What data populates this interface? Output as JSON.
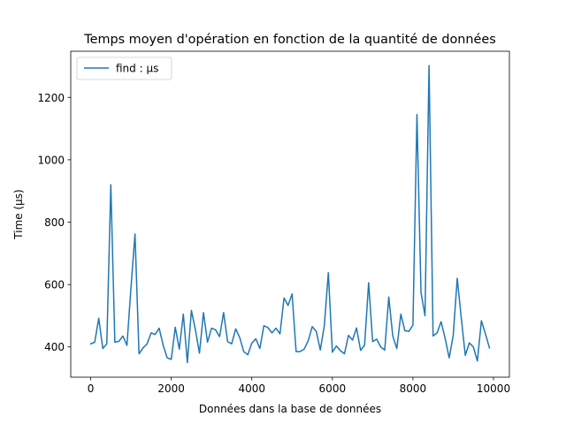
{
  "chart_data": {
    "type": "line",
    "title": "Temps moyen d'opération en fonction de la quantité de données",
    "xlabel": "Données dans la base de données",
    "ylabel": "Time (µs)",
    "xlim": [
      -495,
      10395
    ],
    "ylim": [
      303,
      1348
    ],
    "xticks": [
      0,
      2000,
      4000,
      6000,
      8000,
      10000
    ],
    "yticks": [
      400,
      600,
      800,
      1000,
      1200
    ],
    "grid": false,
    "legend": "top-left",
    "colors": {
      "series": "#1f77b4",
      "axes": "#000000",
      "background": "#ffffff"
    },
    "series": [
      {
        "name": "find : µs",
        "x": [
          0,
          100,
          200,
          300,
          400,
          500,
          600,
          700,
          800,
          900,
          1000,
          1100,
          1200,
          1300,
          1400,
          1500,
          1600,
          1700,
          1800,
          1900,
          2000,
          2100,
          2200,
          2300,
          2400,
          2500,
          2600,
          2700,
          2800,
          2900,
          3000,
          3100,
          3200,
          3300,
          3400,
          3500,
          3600,
          3700,
          3800,
          3900,
          4000,
          4100,
          4200,
          4300,
          4400,
          4500,
          4600,
          4700,
          4800,
          4900,
          5000,
          5100,
          5200,
          5300,
          5400,
          5500,
          5600,
          5700,
          5800,
          5900,
          6000,
          6100,
          6200,
          6300,
          6400,
          6500,
          6600,
          6700,
          6800,
          6900,
          7000,
          7100,
          7200,
          7300,
          7400,
          7500,
          7600,
          7700,
          7800,
          7900,
          8000,
          8100,
          8200,
          8300,
          8400,
          8500,
          8600,
          8700,
          8800,
          8900,
          9000,
          9100,
          9200,
          9300,
          9400,
          9500,
          9600,
          9700,
          9800,
          9900
        ],
        "values": [
          410,
          415,
          492,
          395,
          410,
          920,
          415,
          418,
          435,
          405,
          590,
          762,
          378,
          397,
          410,
          445,
          440,
          460,
          405,
          365,
          360,
          463,
          393,
          505,
          350,
          517,
          455,
          380,
          510,
          415,
          460,
          455,
          433,
          510,
          417,
          410,
          458,
          430,
          385,
          375,
          412,
          426,
          395,
          468,
          462,
          445,
          460,
          442,
          557,
          533,
          570,
          385,
          385,
          393,
          420,
          465,
          450,
          390,
          468,
          638,
          383,
          403,
          388,
          378,
          437,
          422,
          461,
          389,
          406,
          606,
          417,
          425,
          400,
          390,
          560,
          435,
          395,
          505,
          452,
          450,
          470,
          1145,
          575,
          500,
          1302,
          435,
          445,
          481,
          427,
          365,
          437,
          620,
          493,
          373,
          413,
          400,
          355,
          484,
          442,
          397
        ]
      }
    ]
  }
}
